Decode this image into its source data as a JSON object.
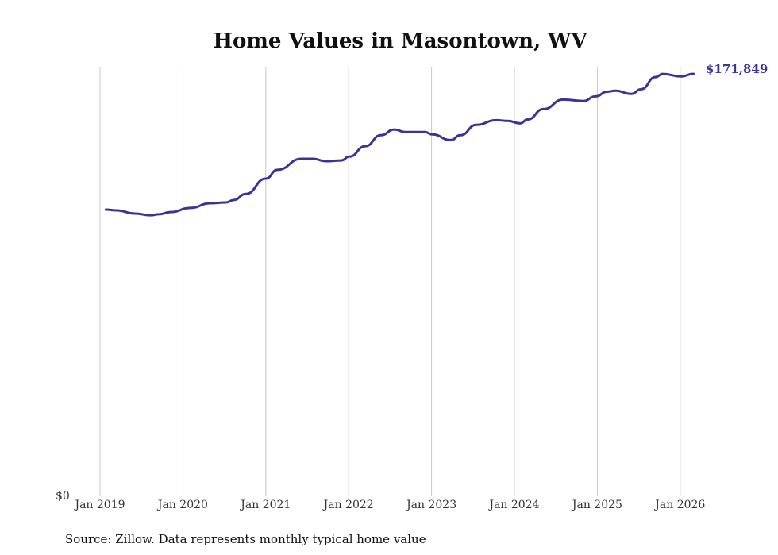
{
  "chart_data": {
    "type": "line",
    "title": "Home Values in Masontown, WV",
    "xlabel": "",
    "ylabel": "",
    "x_ticks": [
      "Jan 2019",
      "Jan 2020",
      "Jan 2021",
      "Jan 2022",
      "Jan 2023",
      "Jan 2024",
      "Jan 2025",
      "Jan 2026"
    ],
    "y_tick_label": "$0",
    "ylim": [
      0,
      171849
    ],
    "grid": "vertical",
    "end_label": "$171,849",
    "line_color": "#3b3494",
    "series": [
      {
        "name": "Typical home value",
        "x": [
          2019.07,
          2019.2,
          2019.42,
          2019.61,
          2019.71,
          2019.85,
          2020.09,
          2020.33,
          2020.52,
          2020.61,
          2020.76,
          2021.0,
          2021.14,
          2021.43,
          2021.57,
          2021.72,
          2021.91,
          2022.01,
          2022.2,
          2022.39,
          2022.55,
          2022.68,
          2022.92,
          2023.01,
          2023.23,
          2023.35,
          2023.54,
          2023.78,
          2023.92,
          2024.07,
          2024.16,
          2024.35,
          2024.59,
          2024.83,
          2024.98,
          2025.12,
          2025.22,
          2025.41,
          2025.53,
          2025.7,
          2025.79,
          2026.01,
          2026.16
        ],
        "values": [
          116600,
          116300,
          115000,
          114300,
          114700,
          115600,
          117300,
          119200,
          119500,
          120500,
          123000,
          129200,
          132800,
          137300,
          137300,
          136300,
          136600,
          138200,
          142400,
          146900,
          149200,
          148200,
          148200,
          147200,
          144900,
          146900,
          151100,
          153000,
          152700,
          151700,
          153300,
          157500,
          161400,
          160800,
          162700,
          164600,
          165000,
          163700,
          165600,
          170500,
          171800,
          170800,
          171849
        ]
      }
    ]
  },
  "source": "Source: Zillow. Data represents monthly typical home value"
}
